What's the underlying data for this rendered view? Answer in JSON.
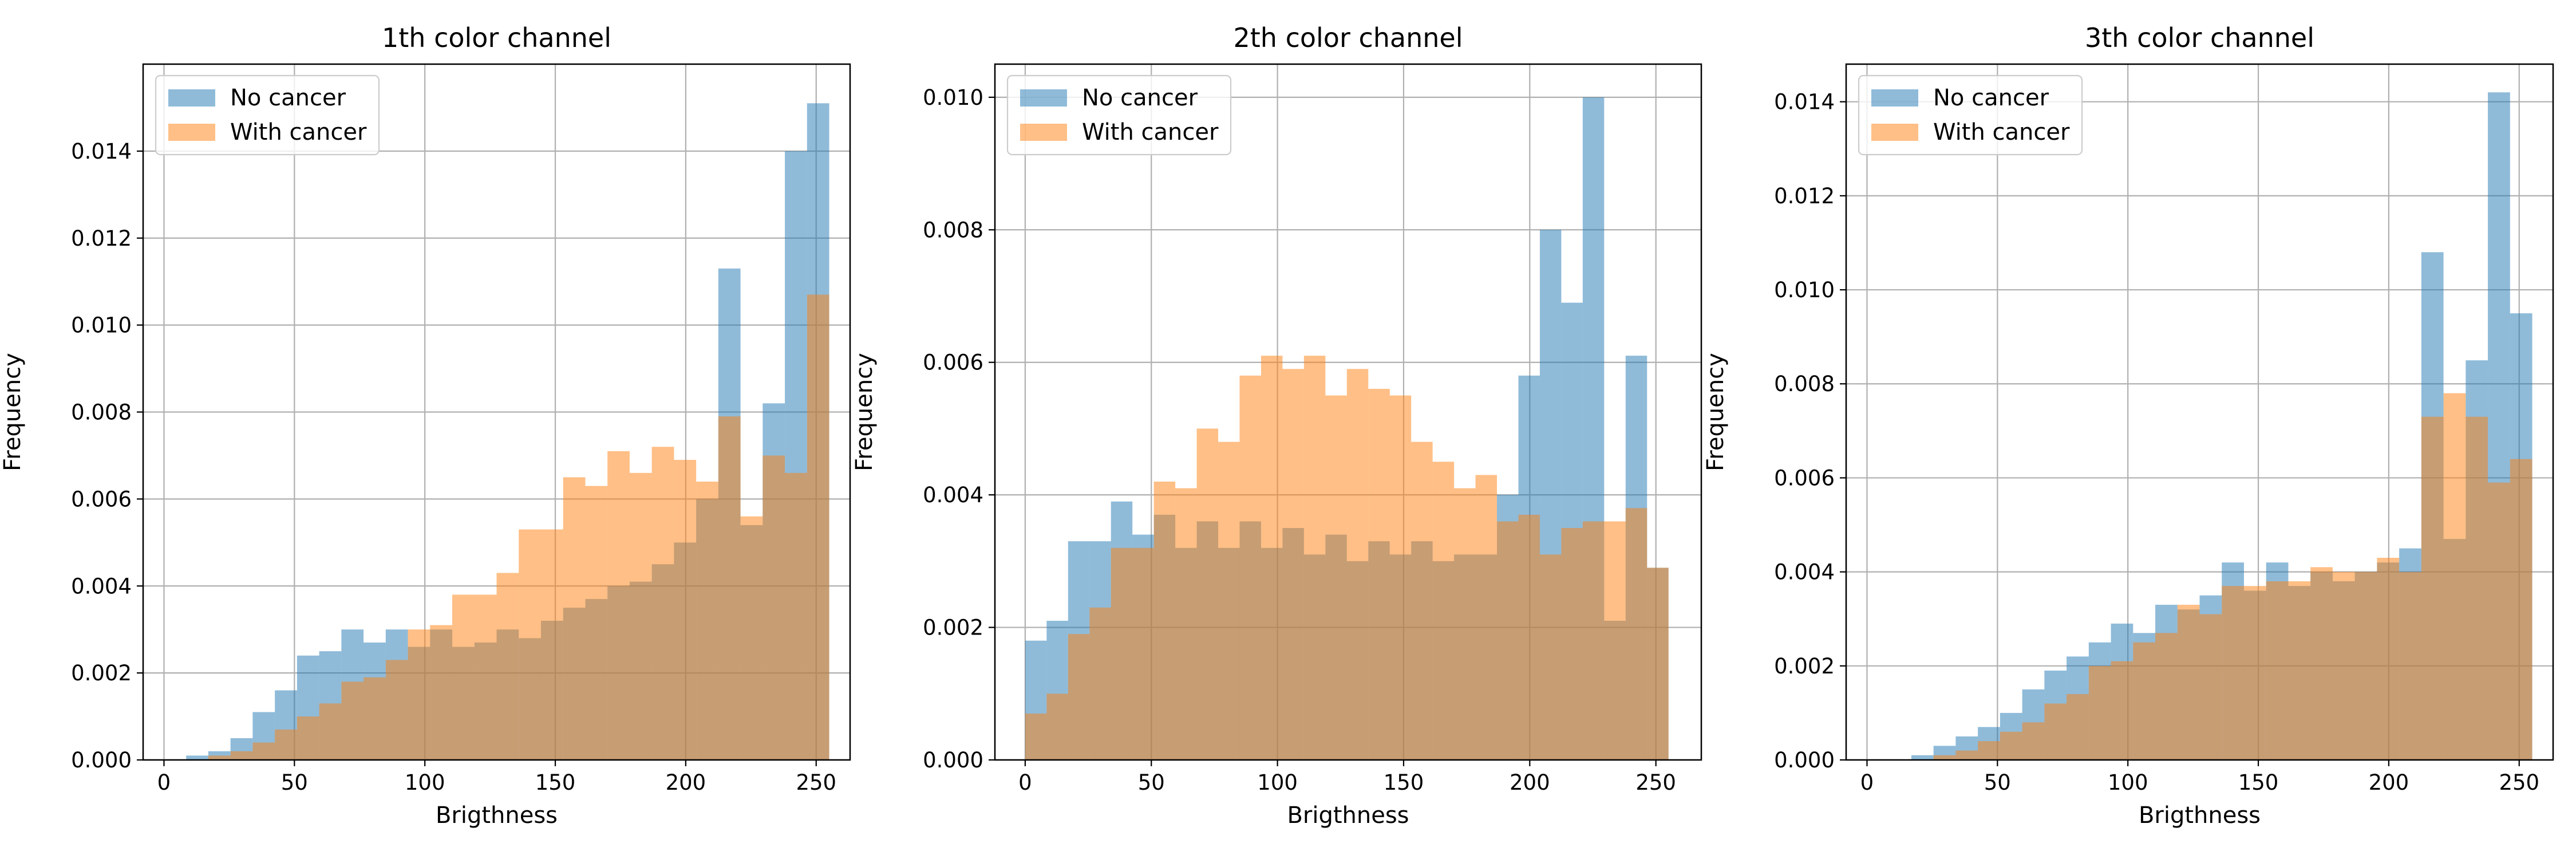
{
  "colors": {
    "no_cancer": "#1f77b4",
    "with_cancer": "#ff7f0e",
    "overlap_note": "alpha 0.5 each"
  },
  "chart_data": [
    {
      "type": "histogram",
      "title": "1th color channel",
      "xlabel": "Brigthness",
      "ylabel": "Frequency",
      "xlim": [
        -8,
        263
      ],
      "ylim": [
        0,
        0.016
      ],
      "xticks": [
        "0",
        "50",
        "100",
        "150",
        "200",
        "250"
      ],
      "yticks": [
        "0.000",
        "0.002",
        "0.004",
        "0.006",
        "0.008",
        "0.010",
        "0.012",
        "0.014"
      ],
      "grid": true,
      "legend": {
        "position": "top-left",
        "entries": [
          "No cancer",
          "With cancer"
        ]
      },
      "bins": {
        "start": 0,
        "end": 255,
        "count": 30
      },
      "series": [
        {
          "name": "No cancer",
          "values": [
            0.0,
            0.0001,
            0.0002,
            0.0005,
            0.0011,
            0.0016,
            0.0024,
            0.0025,
            0.003,
            0.0027,
            0.003,
            0.0026,
            0.003,
            0.0026,
            0.0027,
            0.003,
            0.0028,
            0.0032,
            0.0035,
            0.0037,
            0.004,
            0.0041,
            0.0045,
            0.005,
            0.006,
            0.0113,
            0.0054,
            0.0082,
            0.014,
            0.0151
          ]
        },
        {
          "name": "With cancer",
          "values": [
            0.0,
            0.0,
            0.0001,
            0.0002,
            0.0004,
            0.0007,
            0.001,
            0.0013,
            0.0018,
            0.0019,
            0.0023,
            0.003,
            0.0031,
            0.0038,
            0.0038,
            0.0043,
            0.0053,
            0.0053,
            0.0065,
            0.0063,
            0.0071,
            0.0066,
            0.0072,
            0.0069,
            0.0064,
            0.0079,
            0.0056,
            0.007,
            0.0066,
            0.0107
          ]
        }
      ]
    },
    {
      "type": "histogram",
      "title": "2th color channel",
      "xlabel": "Brigthness",
      "ylabel": "Frequency",
      "xlim": [
        -12,
        268
      ],
      "ylim": [
        0,
        0.0105
      ],
      "xticks": [
        "0",
        "50",
        "100",
        "150",
        "200",
        "250"
      ],
      "yticks": [
        "0.000",
        "0.002",
        "0.004",
        "0.006",
        "0.008",
        "0.010"
      ],
      "grid": true,
      "legend": {
        "position": "top-left",
        "entries": [
          "No cancer",
          "With cancer"
        ]
      },
      "bins": {
        "start": 0,
        "end": 255,
        "count": 30
      },
      "series": [
        {
          "name": "No cancer",
          "values": [
            0.0018,
            0.0021,
            0.0033,
            0.0033,
            0.0039,
            0.0034,
            0.0037,
            0.0032,
            0.0036,
            0.0032,
            0.0036,
            0.0032,
            0.0035,
            0.0031,
            0.0034,
            0.003,
            0.0033,
            0.0031,
            0.0033,
            0.003,
            0.0031,
            0.0031,
            0.004,
            0.0058,
            0.008,
            0.0069,
            0.01,
            0.0021,
            0.0061,
            0.0029
          ]
        },
        {
          "name": "With cancer",
          "values": [
            0.0007,
            0.001,
            0.0019,
            0.0023,
            0.0032,
            0.0032,
            0.0042,
            0.0041,
            0.005,
            0.0048,
            0.0058,
            0.0061,
            0.0059,
            0.0061,
            0.0055,
            0.0059,
            0.0056,
            0.0055,
            0.0048,
            0.0045,
            0.0041,
            0.0043,
            0.0036,
            0.0037,
            0.0031,
            0.0035,
            0.0036,
            0.0036,
            0.0038,
            0.0029
          ]
        }
      ]
    },
    {
      "type": "histogram",
      "title": "3th color channel",
      "xlabel": "Brigthness",
      "ylabel": "Frequency",
      "xlim": [
        -8,
        263
      ],
      "ylim": [
        0,
        0.0148
      ],
      "xticks": [
        "0",
        "50",
        "100",
        "150",
        "200",
        "250"
      ],
      "yticks": [
        "0.000",
        "0.002",
        "0.004",
        "0.006",
        "0.008",
        "0.010",
        "0.012",
        "0.014"
      ],
      "grid": true,
      "legend": {
        "position": "top-left",
        "entries": [
          "No cancer",
          "With cancer"
        ]
      },
      "bins": {
        "start": 0,
        "end": 255,
        "count": 30
      },
      "series": [
        {
          "name": "No cancer",
          "values": [
            0.0,
            0.0,
            0.0001,
            0.0003,
            0.0005,
            0.0007,
            0.001,
            0.0015,
            0.0019,
            0.0022,
            0.0025,
            0.0029,
            0.0027,
            0.0033,
            0.0032,
            0.0035,
            0.0042,
            0.0036,
            0.0042,
            0.0037,
            0.004,
            0.0038,
            0.004,
            0.0042,
            0.0045,
            0.0108,
            0.0047,
            0.0085,
            0.0142,
            0.0095
          ]
        },
        {
          "name": "With cancer",
          "values": [
            0.0,
            0.0,
            0.0,
            0.0001,
            0.0002,
            0.0004,
            0.0006,
            0.0008,
            0.0012,
            0.0014,
            0.002,
            0.0021,
            0.0025,
            0.0027,
            0.0033,
            0.0031,
            0.0037,
            0.0037,
            0.0038,
            0.0038,
            0.0041,
            0.004,
            0.004,
            0.0043,
            0.004,
            0.0073,
            0.0078,
            0.0073,
            0.0059,
            0.0064
          ]
        }
      ]
    }
  ]
}
